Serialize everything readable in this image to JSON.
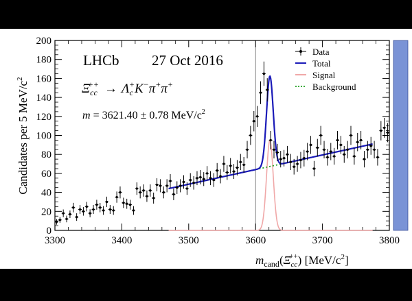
{
  "chart_data": {
    "type": "scatter",
    "experiment": "LHCb",
    "date": "27 Oct 2016",
    "decay": {
      "lhs_base": "Ξ",
      "lhs_sub": "cc",
      "lhs_sup": "++",
      "arrow": "→",
      "p1_base": "Λ",
      "p1_sub": "c",
      "p1_sup": "+",
      "p2_base": "K",
      "p2_sup": "−",
      "p3_base": "π",
      "p3_sup": "+",
      "p4_base": "π",
      "p4_sup": "+"
    },
    "mass_result": {
      "symbol": "m",
      "text": " = 3621.40 ± 0.78 MeV/c",
      "sup": "2"
    },
    "ylabel": {
      "text": "Candidates per 5 MeV/c",
      "sup": "2"
    },
    "xlabel": {
      "m": "m",
      "sub": "cand",
      "open": "(",
      "base": "Ξ",
      "base_sub": "cc",
      "base_sup": "++",
      "unit": ") [MeV/c",
      "unit_sup": "2",
      "close": "]"
    },
    "xlim": [
      3300,
      3800
    ],
    "ylim": [
      0,
      200
    ],
    "xticks": [
      3300,
      3400,
      3500,
      3600,
      3700,
      3800
    ],
    "yticks": [
      0,
      20,
      40,
      60,
      80,
      100,
      120,
      140,
      160,
      180,
      200
    ],
    "peak_marker_x": 3600,
    "legend": [
      {
        "label": "Data",
        "style": "points",
        "color": "#000000"
      },
      {
        "label": "Total",
        "style": "line",
        "color": "#1a1ab8"
      },
      {
        "label": "Signal",
        "style": "line",
        "color": "#f0a8a8"
      },
      {
        "label": "Background",
        "style": "dotted",
        "color": "#22a022"
      }
    ],
    "series": [
      {
        "name": "Data",
        "x": [
          3302.5,
          3307.5,
          3312.5,
          3317.5,
          3322.5,
          3327.5,
          3332.5,
          3337.5,
          3342.5,
          3347.5,
          3352.5,
          3357.5,
          3362.5,
          3367.5,
          3372.5,
          3377.5,
          3382.5,
          3387.5,
          3392.5,
          3397.5,
          3402.5,
          3407.5,
          3412.5,
          3417.5,
          3422.5,
          3427.5,
          3432.5,
          3437.5,
          3442.5,
          3447.5,
          3452.5,
          3457.5,
          3462.5,
          3467.5,
          3472.5,
          3477.5,
          3482.5,
          3487.5,
          3492.5,
          3497.5,
          3502.5,
          3507.5,
          3512.5,
          3517.5,
          3522.5,
          3527.5,
          3532.5,
          3537.5,
          3542.5,
          3547.5,
          3552.5,
          3557.5,
          3562.5,
          3567.5,
          3572.5,
          3577.5,
          3582.5,
          3587.5,
          3592.5,
          3597.5,
          3602.5,
          3607.5,
          3612.5,
          3617.5,
          3622.5,
          3627.5,
          3632.5,
          3637.5,
          3642.5,
          3647.5,
          3652.5,
          3657.5,
          3662.5,
          3667.5,
          3672.5,
          3677.5,
          3682.5,
          3687.5,
          3692.5,
          3697.5,
          3702.5,
          3707.5,
          3712.5,
          3717.5,
          3722.5,
          3727.5,
          3732.5,
          3737.5,
          3742.5,
          3747.5,
          3752.5,
          3757.5,
          3762.5,
          3767.5,
          3772.5,
          3777.5,
          3782.5,
          3787.5,
          3792.5,
          3797.5
        ],
        "y": [
          9,
          11,
          18,
          12,
          17,
          24,
          14,
          22,
          20,
          25,
          18,
          22,
          27,
          24,
          21,
          30,
          22,
          21,
          35,
          40,
          29,
          28,
          27,
          21,
          44,
          40,
          42,
          36,
          42,
          34,
          48,
          47,
          40,
          47,
          52,
          38,
          45,
          47,
          51,
          44,
          53,
          50,
          55,
          56,
          54,
          60,
          55,
          53,
          63,
          57,
          70,
          61,
          68,
          62,
          66,
          72,
          69,
          85,
          100,
          115,
          120,
          145,
          165,
          148,
          95,
          85,
          82,
          75,
          76,
          80,
          72,
          67,
          70,
          74,
          76,
          83,
          90,
          65,
          87,
          100,
          85,
          77,
          83,
          78,
          95,
          90,
          80,
          85,
          100,
          78,
          93,
          95,
          75,
          85,
          89,
          85,
          77,
          105,
          108,
          103
        ],
        "err": [
          3,
          3,
          4,
          3.5,
          4,
          5,
          4,
          4.7,
          4.5,
          5,
          4.2,
          4.7,
          5.2,
          4.9,
          4.6,
          5.5,
          4.7,
          4.6,
          5.9,
          6.3,
          5.4,
          5.3,
          5.2,
          4.6,
          6.6,
          6.3,
          6.5,
          6,
          6.5,
          5.8,
          6.9,
          6.9,
          6.3,
          6.9,
          7.2,
          6.2,
          6.7,
          6.9,
          7.1,
          6.6,
          7.3,
          7.1,
          7.4,
          7.5,
          7.3,
          7.7,
          7.4,
          7.3,
          7.9,
          7.5,
          8.4,
          7.8,
          8.2,
          7.9,
          8.1,
          8.5,
          8.3,
          9.2,
          10,
          10.7,
          11,
          12,
          12.8,
          12.2,
          9.7,
          9.2,
          9.1,
          8.7,
          8.7,
          8.9,
          8.5,
          8.2,
          8.4,
          8.6,
          8.7,
          9.1,
          9.5,
          8.1,
          9.3,
          10,
          9.2,
          8.8,
          9.1,
          8.8,
          9.7,
          9.5,
          8.9,
          9.2,
          10,
          8.8,
          9.6,
          9.7,
          8.7,
          9.2,
          9.4,
          9.2,
          8.8,
          10.2,
          10.4,
          10.1
        ]
      }
    ],
    "fit": {
      "range": [
        3470,
        3775
      ],
      "background": {
        "x0": 3470,
        "y0": 44,
        "slope": 0.154
      },
      "signal": {
        "mean": 3621.4,
        "sigma": 5.0,
        "amplitude": 95
      }
    }
  }
}
